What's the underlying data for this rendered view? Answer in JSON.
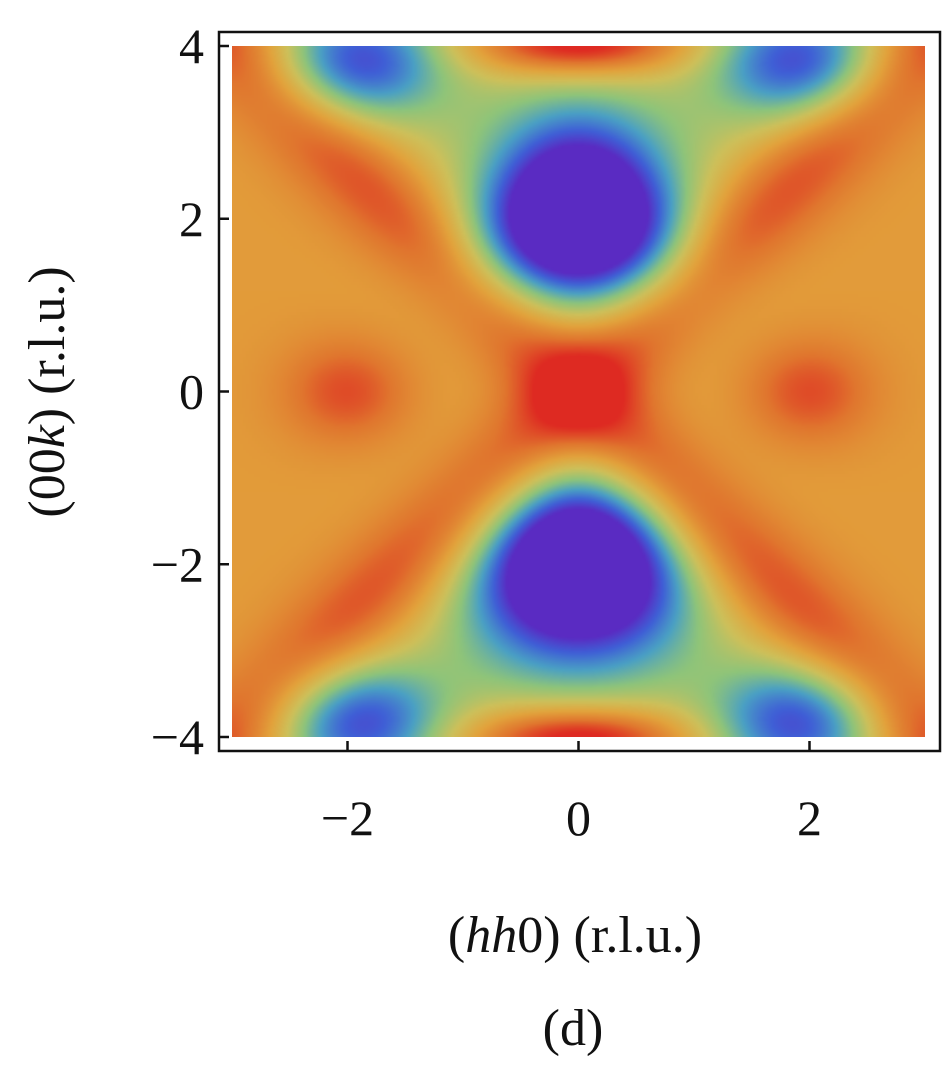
{
  "chart_data": {
    "type": "heatmap",
    "panel_label": "(d)",
    "xlabel": {
      "open": "(",
      "var": "hh",
      "rest": "0) (r.l.u.)"
    },
    "ylabel": {
      "open": "(00",
      "var": "k",
      "rest": ") (r.l.u.)"
    },
    "xlim": [
      -3,
      3
    ],
    "ylim": [
      -4,
      4
    ],
    "x_ticks": [
      {
        "value": -2,
        "label": "−2"
      },
      {
        "value": 0,
        "label": "0"
      },
      {
        "value": 2,
        "label": "2"
      }
    ],
    "y_ticks": [
      {
        "value": -4,
        "label": "−4"
      },
      {
        "value": -2,
        "label": "−2"
      },
      {
        "value": 0,
        "label": "0"
      },
      {
        "value": 2,
        "label": "2"
      },
      {
        "value": 4,
        "label": "4"
      }
    ],
    "colormap": [
      "#5a2bc2",
      "#3f5fd6",
      "#4aa0c4",
      "#8ec47a",
      "#cdc05a",
      "#e2a33c",
      "#e0762e",
      "#de2a22"
    ],
    "features": [
      {
        "kind": "minimum",
        "x": 0,
        "y": 2
      },
      {
        "kind": "minimum",
        "x": 0,
        "y": -2
      },
      {
        "kind": "local-minimum",
        "x": -1.9,
        "y": 3.8
      },
      {
        "kind": "local-minimum",
        "x": 1.9,
        "y": 3.8
      },
      {
        "kind": "local-minimum",
        "x": -1.9,
        "y": -3.8
      },
      {
        "kind": "local-minimum",
        "x": 1.9,
        "y": -3.8
      },
      {
        "kind": "maximum",
        "x": -2,
        "y": 0
      },
      {
        "kind": "maximum",
        "x": 2,
        "y": 0
      },
      {
        "kind": "maximum",
        "x": 0,
        "y": 4
      },
      {
        "kind": "maximum",
        "x": 0,
        "y": -4
      }
    ]
  }
}
